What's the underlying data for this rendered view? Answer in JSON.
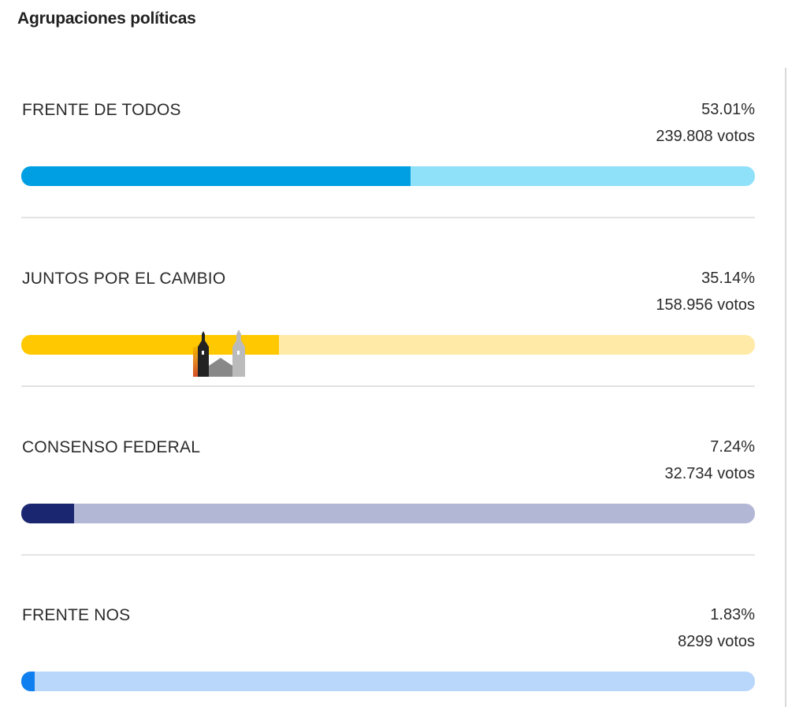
{
  "title": "Agrupaciones políticas",
  "parties": [
    {
      "name": "FRENTE DE TODOS",
      "percent_label": "53.01%",
      "votes_label": "239.808 votos",
      "share": 0.5301,
      "fill_color": "#009fe3",
      "track_color": "#8fe1fa"
    },
    {
      "name": "JUNTOS POR EL CAMBIO",
      "percent_label": "35.14%",
      "votes_label": "158.956 votos",
      "share": 0.3514,
      "fill_color": "#ffc800",
      "track_color": "#ffeaa8"
    },
    {
      "name": "CONSENSO FEDERAL",
      "percent_label": "7.24%",
      "votes_label": "32.734 votos",
      "share": 0.0724,
      "fill_color": "#1a2670",
      "track_color": "#b3b7d6"
    },
    {
      "name": "FRENTE NOS",
      "percent_label": "1.83%",
      "votes_label": "8299 votos",
      "share": 0.0183,
      "fill_color": "#0f7ff0",
      "track_color": "#b9d6fb"
    }
  ],
  "watermark_icon": "church-towers-icon"
}
